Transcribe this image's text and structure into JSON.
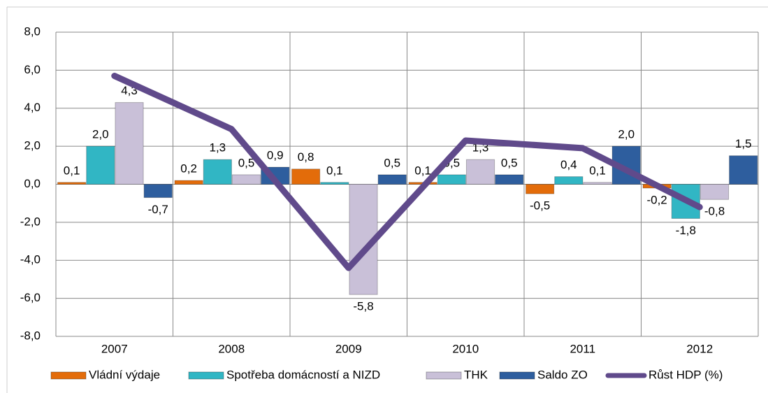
{
  "chart_data": {
    "type": "bar",
    "categories": [
      "2007",
      "2008",
      "2009",
      "2010",
      "2011",
      "2012"
    ],
    "series": [
      {
        "name": "Vládní výdaje",
        "color": "#e36c0a",
        "values": [
          0.1,
          0.2,
          0.8,
          0.1,
          -0.5,
          -0.2
        ],
        "value_labels": [
          "0,1",
          "0,2",
          "0,8",
          "0,1",
          "-0,5",
          "-0,2"
        ]
      },
      {
        "name": "Spotřeba domácností a NIZD",
        "color": "#31b6c4",
        "values": [
          2.0,
          1.3,
          0.1,
          0.5,
          0.4,
          -1.8
        ],
        "value_labels": [
          "2,0",
          "1,3",
          "0,1",
          "0,5",
          "0,4",
          "-1,8"
        ]
      },
      {
        "name": "THK",
        "color": "#c9c0d8",
        "values": [
          4.3,
          0.5,
          -5.8,
          1.3,
          0.1,
          -0.8
        ],
        "value_labels": [
          "4,3",
          "0,5",
          "-5,8",
          "1,3",
          "0,1",
          "-0,8"
        ]
      },
      {
        "name": "Saldo ZO",
        "color": "#2e5e9e",
        "values": [
          -0.7,
          0.9,
          0.5,
          0.5,
          2.0,
          1.5
        ],
        "value_labels": [
          "-0,7",
          "0,9",
          "0,5",
          "0,5",
          "2,0",
          "1,5"
        ]
      },
      {
        "name": "Růst HDP (%)",
        "type": "line",
        "color": "#604a8b",
        "values": [
          5.7,
          2.9,
          -4.4,
          2.3,
          1.9,
          -1.2
        ]
      }
    ],
    "ylim": [
      -8,
      8
    ],
    "yticks": [
      {
        "value": -8,
        "label": "-8,0"
      },
      {
        "value": -6,
        "label": "-6,0"
      },
      {
        "value": -4,
        "label": "-4,0"
      },
      {
        "value": -2,
        "label": "-2,0"
      },
      {
        "value": 0,
        "label": "0,0"
      },
      {
        "value": 2,
        "label": "2,0"
      },
      {
        "value": 4,
        "label": "4,0"
      },
      {
        "value": 6,
        "label": "6,0"
      },
      {
        "value": 8,
        "label": "8,0"
      }
    ],
    "grid": true
  }
}
